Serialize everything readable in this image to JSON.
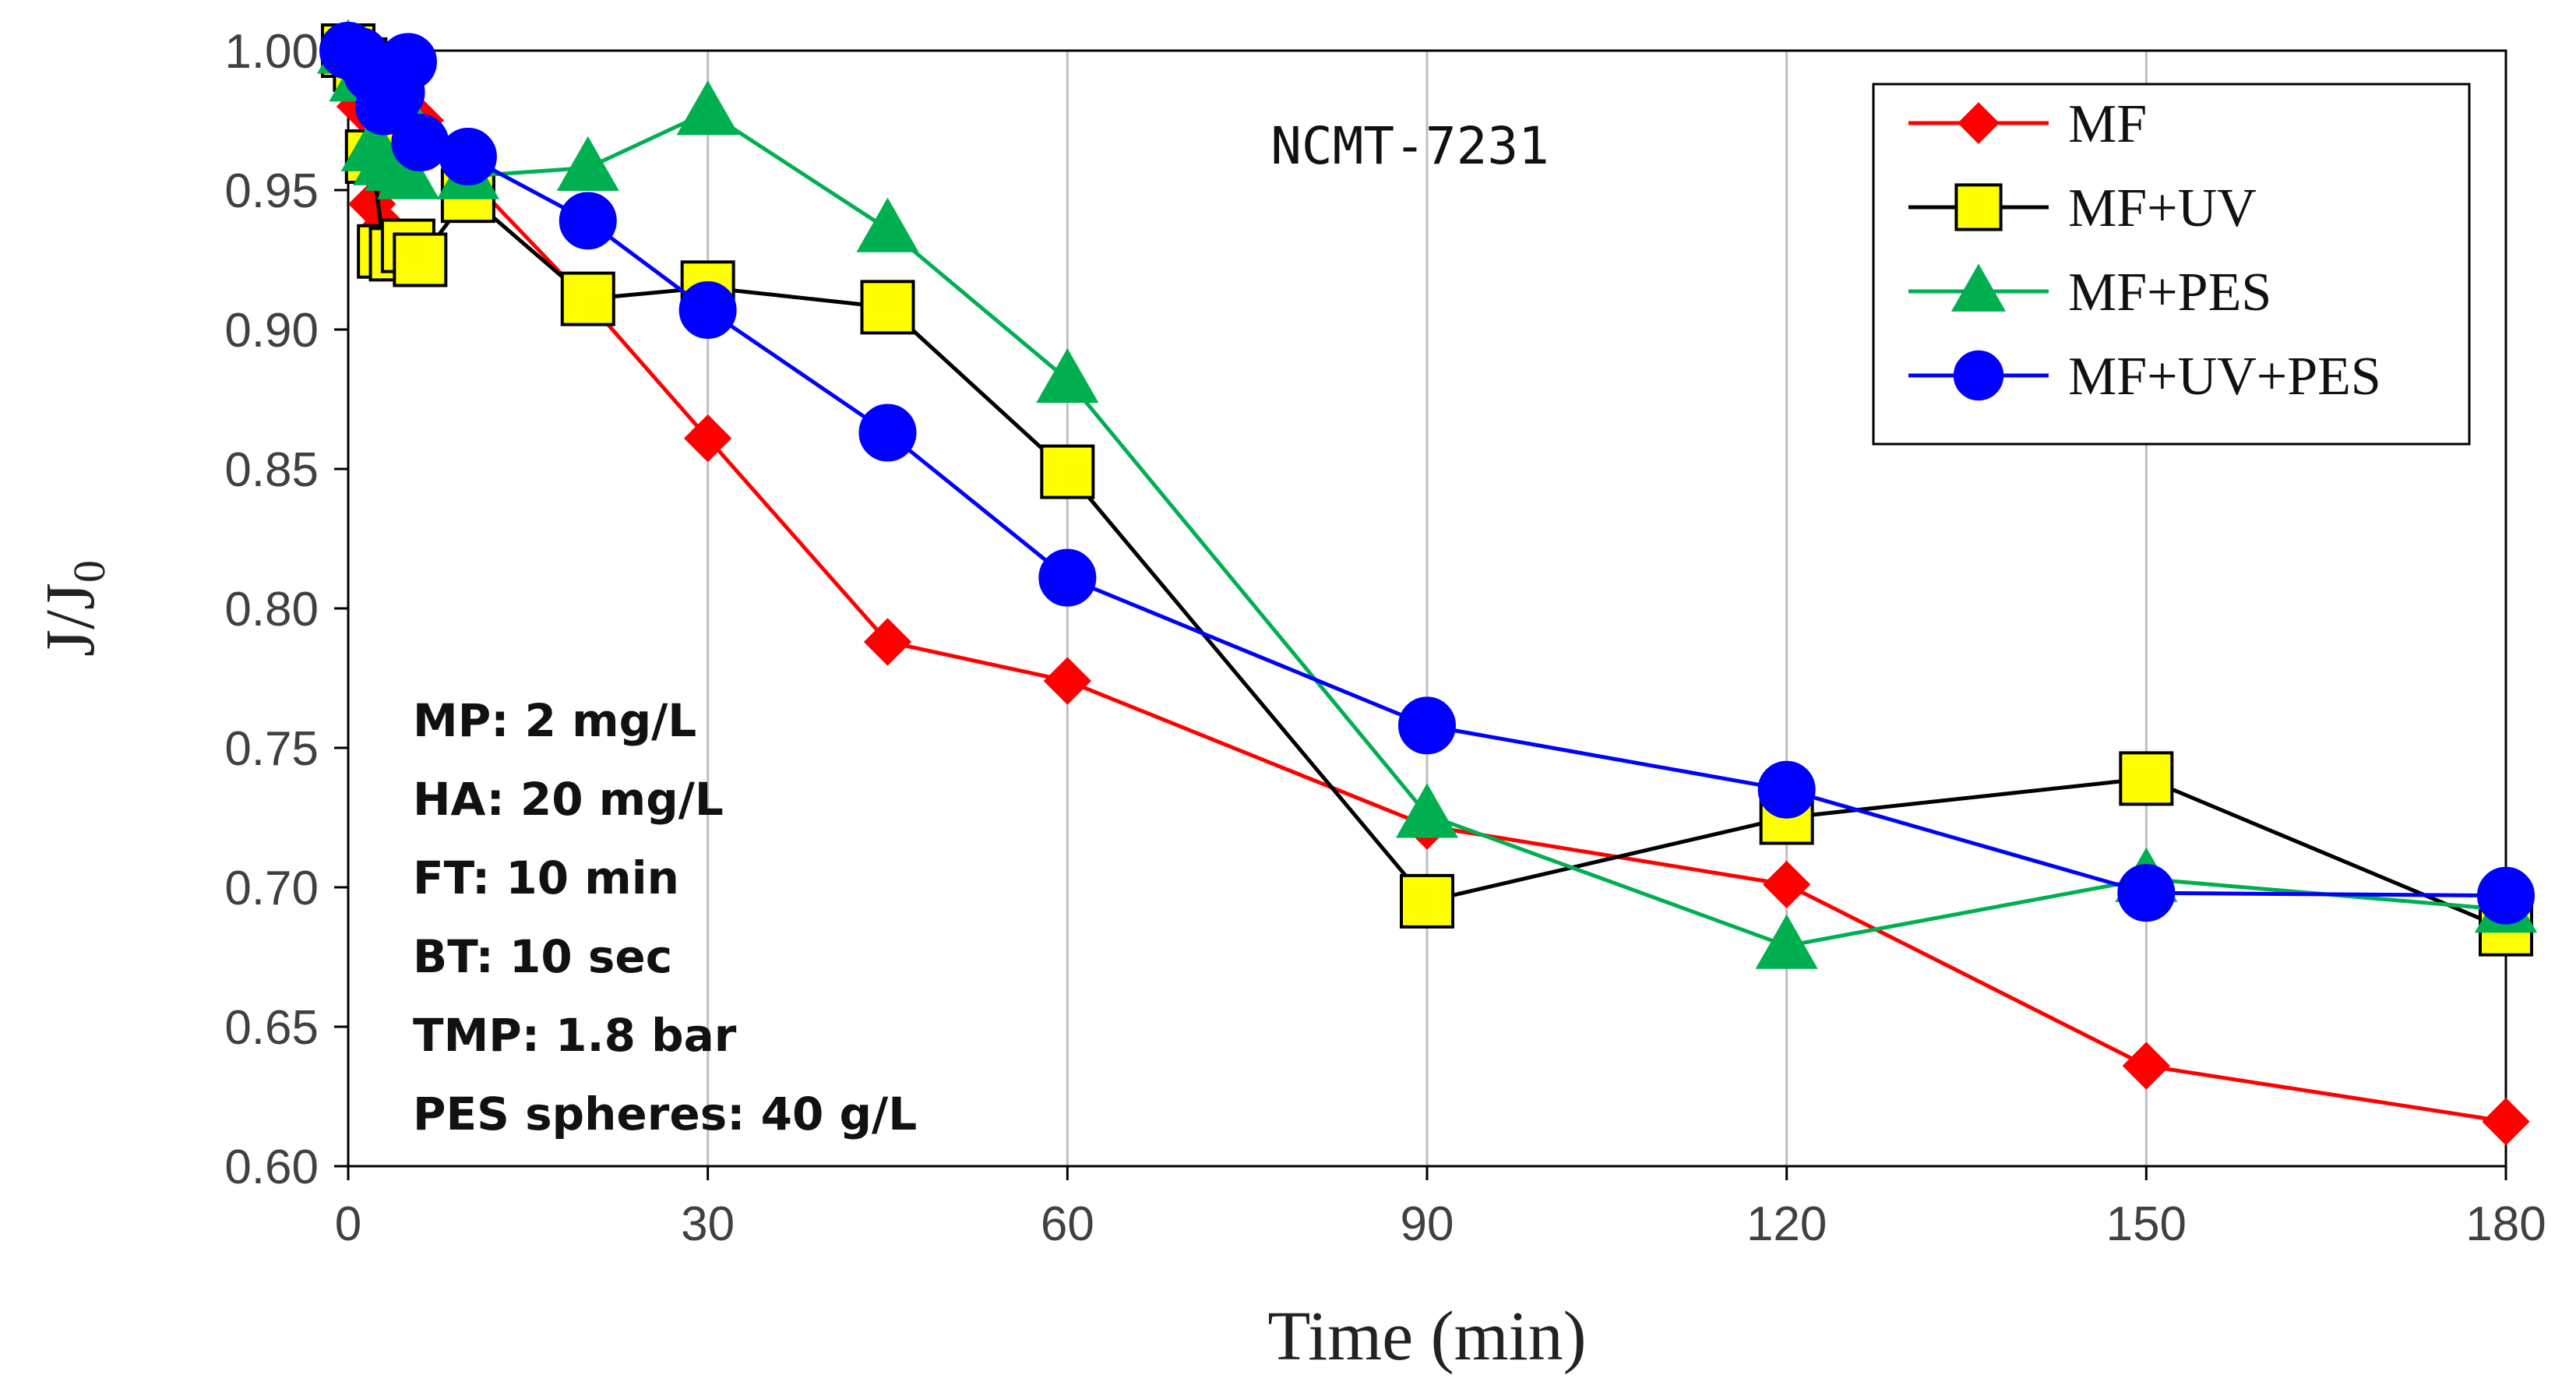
{
  "chart_data": {
    "type": "line",
    "title": "",
    "sample_label": "NCMT-7231",
    "xlabel": "Time (min)",
    "ylabel": "J/J",
    "ylabel_subscript": "0",
    "xlim": [
      0,
      180
    ],
    "ylim": [
      0.6,
      1.0
    ],
    "xticks": [
      "0",
      "30",
      "60",
      "90",
      "120",
      "150",
      "180"
    ],
    "yticks": [
      "0.60",
      "0.65",
      "0.70",
      "0.75",
      "0.80",
      "0.85",
      "0.90",
      "0.95",
      "1.00"
    ],
    "grid": "vertical",
    "legend_position": "top-right",
    "annotations": [
      "MP: 2 mg/L",
      "HA: 20 mg/L",
      "FT: 10 min",
      "BT: 10 sec",
      "TMP: 1.8 bar",
      "PES spheres: 40 g/L"
    ],
    "series": [
      {
        "name": "MF",
        "color": "#ff0000",
        "marker": "diamond",
        "marker_fill": "#ff0000",
        "points": [
          [
            0,
            1.0
          ],
          [
            1,
            0.98
          ],
          [
            2,
            0.945
          ],
          [
            3,
            0.937
          ],
          [
            4,
            0.985
          ],
          [
            5,
            0.965
          ],
          [
            6,
            0.975
          ],
          [
            10,
            0.955
          ],
          [
            20,
            0.91
          ],
          [
            30,
            0.861
          ],
          [
            45,
            0.788
          ],
          [
            60,
            0.774
          ],
          [
            90,
            0.722
          ],
          [
            120,
            0.701
          ],
          [
            150,
            0.636
          ],
          [
            180,
            0.616
          ]
        ]
      },
      {
        "name": "MF+UV",
        "color": "#000000",
        "marker": "square",
        "marker_fill": "#ffff00",
        "points": [
          [
            0,
            1.0
          ],
          [
            1,
            0.995
          ],
          [
            2,
            0.962
          ],
          [
            3,
            0.928
          ],
          [
            4,
            0.927
          ],
          [
            5,
            0.93
          ],
          [
            6,
            0.925
          ],
          [
            10,
            0.948
          ],
          [
            20,
            0.911
          ],
          [
            30,
            0.915
          ],
          [
            45,
            0.908
          ],
          [
            60,
            0.849
          ],
          [
            90,
            0.695
          ],
          [
            120,
            0.725
          ],
          [
            150,
            0.739
          ],
          [
            180,
            0.685
          ]
        ]
      },
      {
        "name": "MF+PES",
        "color": "#00b050",
        "marker": "triangle",
        "marker_fill": "#00b050",
        "points": [
          [
            0,
            1.0
          ],
          [
            1,
            0.99
          ],
          [
            2,
            0.965
          ],
          [
            3,
            0.96
          ],
          [
            4,
            0.958
          ],
          [
            5,
            0.955
          ],
          [
            6,
            0.968
          ],
          [
            10,
            0.955
          ],
          [
            20,
            0.958
          ],
          [
            30,
            0.978
          ],
          [
            45,
            0.936
          ],
          [
            60,
            0.882
          ],
          [
            90,
            0.726
          ],
          [
            120,
            0.679
          ],
          [
            150,
            0.703
          ],
          [
            180,
            0.692
          ]
        ]
      },
      {
        "name": "MF+UV+PES",
        "color": "#0000ff",
        "marker": "circle",
        "marker_fill": "#0000ff",
        "points": [
          [
            0,
            1.0
          ],
          [
            1,
            0.998
          ],
          [
            2,
            0.992
          ],
          [
            3,
            0.98
          ],
          [
            4,
            0.985
          ],
          [
            5,
            0.996
          ],
          [
            6,
            0.967
          ],
          [
            10,
            0.962
          ],
          [
            20,
            0.939
          ],
          [
            30,
            0.907
          ],
          [
            45,
            0.863
          ],
          [
            60,
            0.811
          ],
          [
            90,
            0.758
          ],
          [
            120,
            0.735
          ],
          [
            150,
            0.698
          ],
          [
            180,
            0.697
          ]
        ]
      }
    ]
  }
}
